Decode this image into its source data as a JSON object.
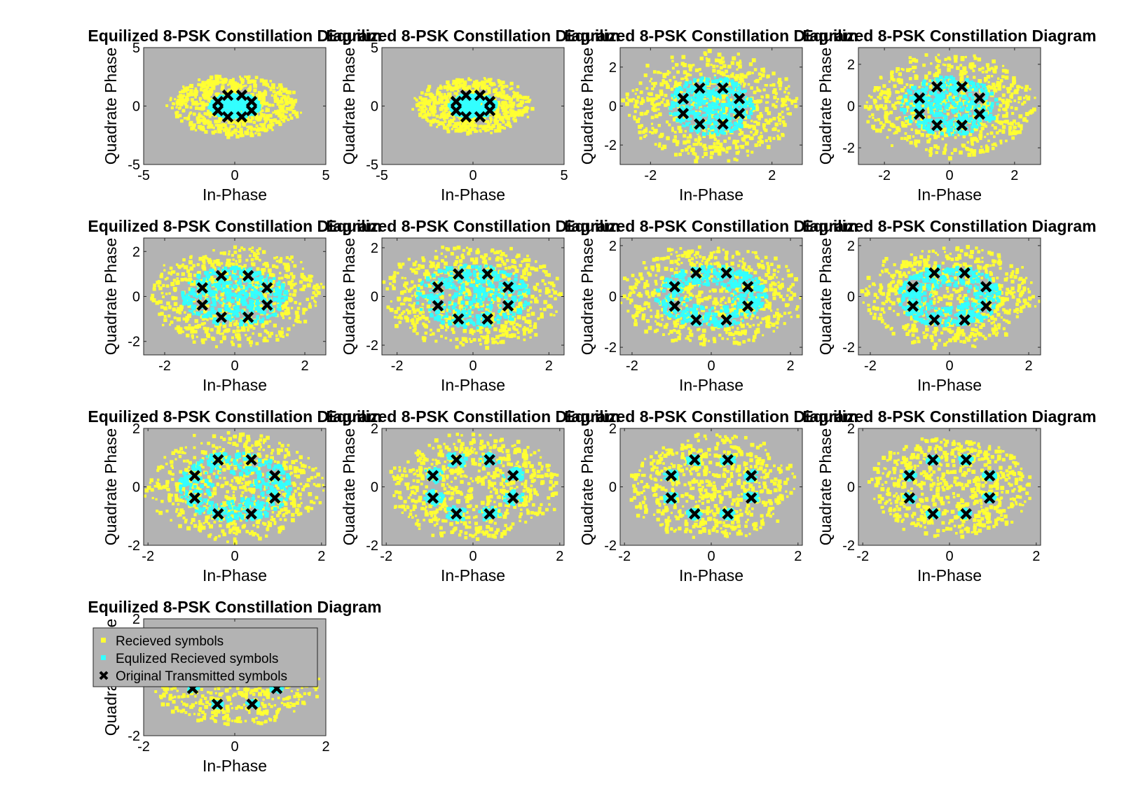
{
  "figure": {
    "panel_count": 13,
    "panel_title": "Equilized 8-PSK Constillation Diagram",
    "xlabel": "In-Phase",
    "ylabel": "Quadrate Phase"
  },
  "colors": {
    "background": "#ffffff",
    "axes_face": "#b3b3b3",
    "received": "#ffff33",
    "equalized": "#33ffff",
    "transmitted": "#000000",
    "frame": "#262626"
  },
  "legend": {
    "placement": "top-left",
    "items": [
      {
        "label": "Recieved symbols",
        "marker": "square",
        "color": "#ffff33"
      },
      {
        "label": "Equlized Recieved symbols",
        "marker": "square",
        "color": "#33ffff"
      },
      {
        "label": "Original Transmitted symbols",
        "marker": "x",
        "color": "#000000"
      }
    ]
  },
  "chart_data": [
    {
      "type": "scatter",
      "title": "Equilized 8-PSK Constillation Diagram",
      "xlabel": "In-Phase",
      "ylabel": "Quadrate Phase",
      "xlim": [
        -5,
        5
      ],
      "ylim": [
        -5,
        5
      ],
      "xticks": [
        "-5",
        "0",
        "5"
      ],
      "yticks": [
        "-5",
        "0",
        "5"
      ],
      "received_spread": [
        3.6,
        2.6
      ],
      "equalized_spread": [
        1.4,
        1.0
      ],
      "equalized_ring": false,
      "series": [
        {
          "name": "Recieved symbols"
        },
        {
          "name": "Equlized Recieved symbols"
        },
        {
          "name": "Original Transmitted symbols",
          "points": "8-PSK"
        }
      ]
    },
    {
      "type": "scatter",
      "title": "Equilized 8-PSK Constillation Diagram",
      "xlabel": "In-Phase",
      "ylabel": "Quadrate Phase",
      "xlim": [
        -5,
        5
      ],
      "ylim": [
        -5,
        5
      ],
      "xticks": [
        "-5",
        "0",
        "5"
      ],
      "yticks": [
        "-5",
        "0",
        "5"
      ],
      "received_spread": [
        3.2,
        2.4
      ],
      "equalized_spread": [
        1.3,
        1.0
      ],
      "equalized_ring": false,
      "series": [
        {
          "name": "Recieved symbols"
        },
        {
          "name": "Equlized Recieved symbols"
        },
        {
          "name": "Original Transmitted symbols",
          "points": "8-PSK"
        }
      ]
    },
    {
      "type": "scatter",
      "title": "Equilized 8-PSK Constillation Diagram",
      "xlabel": "In-Phase",
      "ylabel": "Quadrate Phase",
      "xlim": [
        -3,
        3
      ],
      "ylim": [
        -3,
        3
      ],
      "xticks": [
        "-2",
        "2"
      ],
      "yticks": [
        "-2",
        "0",
        "2"
      ],
      "received_spread": [
        2.9,
        2.8
      ],
      "equalized_spread": [
        1.4,
        1.5
      ],
      "equalized_ring": false,
      "series": [
        {
          "name": "Recieved symbols"
        },
        {
          "name": "Equlized Recieved symbols"
        },
        {
          "name": "Original Transmitted symbols",
          "points": "8-PSK"
        }
      ]
    },
    {
      "type": "scatter",
      "title": "Equilized 8-PSK Constillation Diagram",
      "xlabel": "In-Phase",
      "ylabel": "Quadrate Phase",
      "xlim": [
        -2.8,
        2.8
      ],
      "ylim": [
        -2.8,
        2.8
      ],
      "xticks": [
        "-2",
        "0",
        "2"
      ],
      "yticks": [
        "-2",
        "0",
        "2"
      ],
      "received_spread": [
        2.6,
        2.5
      ],
      "equalized_spread": [
        1.5,
        1.4
      ],
      "equalized_ring": false,
      "series": [
        {
          "name": "Recieved symbols"
        },
        {
          "name": "Equlized Recieved symbols"
        },
        {
          "name": "Original Transmitted symbols",
          "points": "8-PSK"
        }
      ]
    },
    {
      "type": "scatter",
      "title": "Equilized 8-PSK Constillation Diagram",
      "xlabel": "In-Phase",
      "ylabel": "Quadrate Phase",
      "xlim": [
        -2.6,
        2.6
      ],
      "ylim": [
        -2.6,
        2.6
      ],
      "xticks": [
        "-2",
        "0",
        "2"
      ],
      "yticks": [
        "-2",
        "0",
        "2"
      ],
      "received_spread": [
        2.5,
        2.2
      ],
      "equalized_spread": [
        1.5,
        1.3
      ],
      "equalized_ring": false,
      "series": [
        {
          "name": "Recieved symbols"
        },
        {
          "name": "Equlized Recieved symbols"
        },
        {
          "name": "Original Transmitted symbols",
          "points": "8-PSK"
        }
      ]
    },
    {
      "type": "scatter",
      "title": "Equilized 8-PSK Constillation Diagram",
      "xlabel": "In-Phase",
      "ylabel": "Quadrate Phase",
      "xlim": [
        -2.4,
        2.4
      ],
      "ylim": [
        -2.4,
        2.4
      ],
      "xticks": [
        "-2",
        "0",
        "2"
      ],
      "yticks": [
        "-2",
        "0",
        "2"
      ],
      "received_spread": [
        2.4,
        2.1
      ],
      "equalized_spread": [
        1.5,
        1.3
      ],
      "equalized_ring": false,
      "series": [
        {
          "name": "Recieved symbols"
        },
        {
          "name": "Equlized Recieved symbols"
        },
        {
          "name": "Original Transmitted symbols",
          "points": "8-PSK"
        }
      ]
    },
    {
      "type": "scatter",
      "title": "Equilized 8-PSK Constillation Diagram",
      "xlabel": "In-Phase",
      "ylabel": "Quadrate Phase",
      "xlim": [
        -2.3,
        2.3
      ],
      "ylim": [
        -2.3,
        2.3
      ],
      "xticks": [
        "-2",
        "0",
        "2"
      ],
      "yticks": [
        "-2",
        "0",
        "2"
      ],
      "received_spread": [
        2.3,
        2.0
      ],
      "equalized_spread": [
        1.4,
        1.2
      ],
      "equalized_ring": true,
      "series": [
        {
          "name": "Recieved symbols"
        },
        {
          "name": "Equlized Recieved symbols"
        },
        {
          "name": "Original Transmitted symbols",
          "points": "8-PSK"
        }
      ]
    },
    {
      "type": "scatter",
      "title": "Equilized 8-PSK Constillation Diagram",
      "xlabel": "In-Phase",
      "ylabel": "Quadrate Phase",
      "xlim": [
        -2.3,
        2.3
      ],
      "ylim": [
        -2.3,
        2.3
      ],
      "xticks": [
        "-2",
        "0",
        "2"
      ],
      "yticks": [
        "-2",
        "0",
        "2"
      ],
      "received_spread": [
        2.2,
        2.0
      ],
      "equalized_spread": [
        1.3,
        1.2
      ],
      "equalized_ring": true,
      "series": [
        {
          "name": "Recieved symbols"
        },
        {
          "name": "Equlized Recieved symbols"
        },
        {
          "name": "Original Transmitted symbols",
          "points": "8-PSK"
        }
      ]
    },
    {
      "type": "scatter",
      "title": "Equilized 8-PSK Constillation Diagram",
      "xlabel": "In-Phase",
      "ylabel": "Quadrate Phase",
      "xlim": [
        -2.1,
        2.1
      ],
      "ylim": [
        -2,
        2
      ],
      "xticks": [
        "-2",
        "0",
        "2"
      ],
      "yticks": [
        "-2",
        "0",
        "2"
      ],
      "received_spread": [
        2.0,
        1.9
      ],
      "equalized_spread": [
        1.3,
        1.2
      ],
      "equalized_ring": true,
      "series": [
        {
          "name": "Recieved symbols"
        },
        {
          "name": "Equlized Recieved symbols"
        },
        {
          "name": "Original Transmitted symbols",
          "points": "8-PSK"
        }
      ]
    },
    {
      "type": "scatter",
      "title": "Equilized 8-PSK Constillation Diagram",
      "xlabel": "In-Phase",
      "ylabel": "Quadrate Phase",
      "xlim": [
        -2.1,
        2.1
      ],
      "ylim": [
        -2,
        2
      ],
      "xticks": [
        "-2",
        "0",
        "2"
      ],
      "yticks": [
        "-2",
        "0",
        "2"
      ],
      "received_spread": [
        2.0,
        1.8
      ],
      "equalized_spread": [
        0.25,
        0.25
      ],
      "equalized_ring": false,
      "series": [
        {
          "name": "Recieved symbols"
        },
        {
          "name": "Equlized Recieved symbols"
        },
        {
          "name": "Original Transmitted symbols",
          "points": "8-PSK"
        }
      ]
    },
    {
      "type": "scatter",
      "title": "Equilized 8-PSK Constillation Diagram",
      "xlabel": "In-Phase",
      "ylabel": "Quadrate Phase",
      "xlim": [
        -2.1,
        2.1
      ],
      "ylim": [
        -2,
        2
      ],
      "xticks": [
        "-2",
        "0",
        "2"
      ],
      "yticks": [
        "-2",
        "0",
        "2"
      ],
      "received_spread": [
        1.9,
        1.8
      ],
      "equalized_spread": [
        0.18,
        0.18
      ],
      "equalized_ring": false,
      "series": [
        {
          "name": "Recieved symbols"
        },
        {
          "name": "Equlized Recieved symbols"
        },
        {
          "name": "Original Transmitted symbols",
          "points": "8-PSK"
        }
      ]
    },
    {
      "type": "scatter",
      "title": "Equilized 8-PSK Constillation Diagram",
      "xlabel": "In-Phase",
      "ylabel": "Quadrate Phase",
      "xlim": [
        -2.1,
        2.1
      ],
      "ylim": [
        -2,
        2
      ],
      "xticks": [
        "-2",
        "0",
        "2"
      ],
      "yticks": [
        "-2",
        "0",
        "2"
      ],
      "received_spread": [
        1.9,
        1.7
      ],
      "equalized_spread": [
        0.15,
        0.15
      ],
      "equalized_ring": false,
      "series": [
        {
          "name": "Recieved symbols"
        },
        {
          "name": "Equlized Recieved symbols"
        },
        {
          "name": "Original Transmitted symbols",
          "points": "8-PSK"
        }
      ]
    },
    {
      "type": "scatter",
      "title": "Equilized 8-PSK Constillation Diagram",
      "xlabel": "In-Phase",
      "ylabel": "Quadrate Phase",
      "xlim": [
        -2,
        2
      ],
      "ylim": [
        -2,
        2
      ],
      "xticks": [
        "-2",
        "0",
        "2"
      ],
      "yticks": [
        "-2",
        "2"
      ],
      "received_spread": [
        1.9,
        1.7
      ],
      "equalized_spread": [
        0.13,
        0.13
      ],
      "equalized_ring": false,
      "series": [
        {
          "name": "Recieved symbols"
        },
        {
          "name": "Equlized Recieved symbols"
        },
        {
          "name": "Original Transmitted symbols",
          "points": "8-PSK"
        }
      ]
    }
  ]
}
